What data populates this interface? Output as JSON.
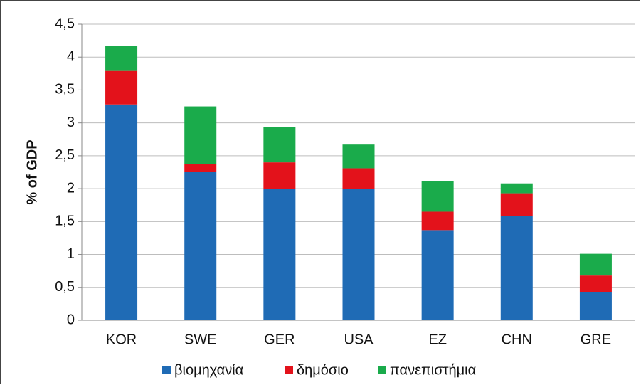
{
  "chart_data": {
    "type": "stacked_bar",
    "y_axis_label": "% of GDP",
    "categories": [
      "KOR",
      "SWE",
      "GER",
      "USA",
      "EZ",
      "CHN",
      "GRE"
    ],
    "series": [
      {
        "name": "βιομηχανία",
        "color": "#1f6bb5",
        "values": [
          3.28,
          2.26,
          2.0,
          2.0,
          1.37,
          1.59,
          0.43
        ]
      },
      {
        "name": "δημόσιο",
        "color": "#e3121b",
        "values": [
          0.51,
          0.11,
          0.4,
          0.31,
          0.28,
          0.34,
          0.25
        ]
      },
      {
        "name": "πανεπιστήμια",
        "color": "#1aab4b",
        "values": [
          0.38,
          0.88,
          0.54,
          0.36,
          0.46,
          0.15,
          0.33
        ]
      }
    ],
    "ylim": [
      0,
      4.5
    ],
    "yticks": [
      0,
      {
        "value": 0.5,
        "label": "0,5"
      },
      1,
      {
        "value": 1.5,
        "label": "1,5"
      },
      2,
      {
        "value": 2.5,
        "label": "2,5"
      },
      3,
      {
        "value": 3.5,
        "label": "3,5"
      },
      4,
      {
        "value": 4.5,
        "label": "4,5"
      }
    ],
    "grid": true,
    "legend": "bottom"
  }
}
